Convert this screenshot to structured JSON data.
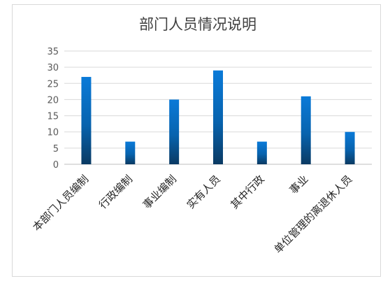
{
  "chart_data": {
    "type": "bar",
    "title": "部门人员情况说明",
    "categories": [
      "本部门人员编制",
      "行政编制",
      "事业编制",
      "实有人员",
      "其中行政",
      "事业",
      "单位管理的离退休人员"
    ],
    "values": [
      27,
      7,
      20,
      29,
      7,
      21,
      10
    ],
    "ylim": [
      0,
      35
    ],
    "yticks": [
      0,
      5,
      10,
      15,
      20,
      25,
      30,
      35
    ],
    "xlabel": "",
    "ylabel": "",
    "grid": true,
    "legend": "none",
    "colors": {
      "bar_top": "#0a7ad8",
      "bar_bottom": "#0a3a63",
      "grid": "#d9d9d9",
      "axis": "#bfbfbf"
    }
  }
}
